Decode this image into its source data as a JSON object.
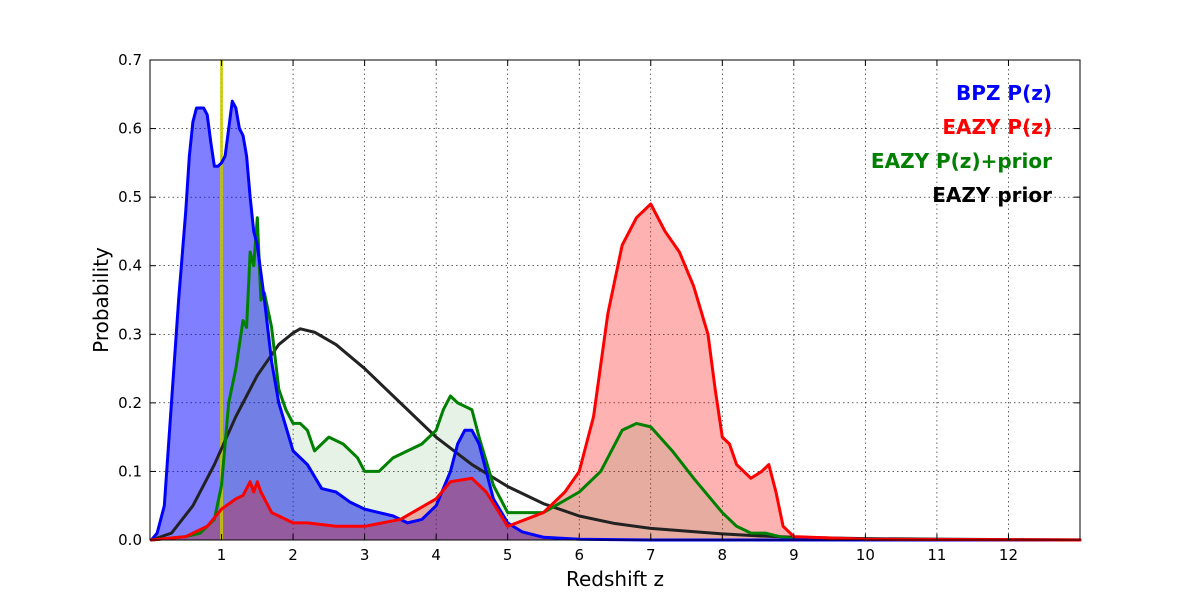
{
  "chart_data": {
    "type": "area",
    "xlabel": "Redshift z",
    "ylabel": "Probability",
    "xlim": [
      0,
      13
    ],
    "ylim": [
      0,
      0.7
    ],
    "xticks": [
      1,
      2,
      3,
      4,
      5,
      6,
      7,
      8,
      9,
      10,
      11,
      12
    ],
    "yticks": [
      0.0,
      0.1,
      0.2,
      0.3,
      0.4,
      0.5,
      0.6,
      0.7
    ],
    "grid": true,
    "legend_position": "top-right",
    "vertical_marker": {
      "x": 1.0,
      "color": "#c8c800"
    },
    "series": [
      {
        "name": "BPZ P(z)",
        "color": "#0000ff",
        "fill": true,
        "x": [
          0.02,
          0.1,
          0.2,
          0.3,
          0.4,
          0.5,
          0.55,
          0.6,
          0.65,
          0.7,
          0.75,
          0.8,
          0.85,
          0.9,
          0.95,
          1.0,
          1.05,
          1.1,
          1.15,
          1.2,
          1.25,
          1.3,
          1.35,
          1.4,
          1.45,
          1.5,
          1.6,
          1.7,
          1.8,
          1.9,
          2.0,
          2.2,
          2.4,
          2.6,
          2.8,
          3.0,
          3.2,
          3.4,
          3.6,
          3.8,
          4.0,
          4.2,
          4.3,
          4.4,
          4.5,
          4.6,
          4.7,
          4.8,
          5.0,
          5.2,
          5.5,
          6.0,
          7.0,
          9.0,
          11.0,
          13.0
        ],
        "y": [
          0.0,
          0.01,
          0.05,
          0.2,
          0.35,
          0.48,
          0.56,
          0.61,
          0.63,
          0.63,
          0.63,
          0.62,
          0.58,
          0.545,
          0.545,
          0.55,
          0.56,
          0.6,
          0.64,
          0.63,
          0.6,
          0.59,
          0.56,
          0.5,
          0.45,
          0.43,
          0.35,
          0.26,
          0.2,
          0.165,
          0.13,
          0.11,
          0.075,
          0.07,
          0.055,
          0.045,
          0.04,
          0.035,
          0.025,
          0.03,
          0.05,
          0.1,
          0.14,
          0.16,
          0.16,
          0.14,
          0.1,
          0.06,
          0.025,
          0.012,
          0.004,
          0.001,
          0.0,
          0.0,
          0.0,
          0.0
        ]
      },
      {
        "name": "EAZY P(z)",
        "color": "#ff0000",
        "fill": true,
        "x": [
          0.02,
          0.5,
          0.8,
          1.0,
          1.2,
          1.3,
          1.4,
          1.45,
          1.5,
          1.55,
          1.6,
          1.7,
          1.8,
          2.0,
          2.2,
          2.6,
          3.0,
          3.5,
          4.0,
          4.2,
          4.5,
          4.7,
          5.0,
          5.5,
          5.8,
          6.0,
          6.2,
          6.4,
          6.6,
          6.8,
          7.0,
          7.2,
          7.4,
          7.6,
          7.8,
          7.9,
          8.0,
          8.1,
          8.2,
          8.4,
          8.55,
          8.65,
          8.75,
          8.85,
          9.0,
          10.0,
          13.0
        ],
        "y": [
          0.0,
          0.005,
          0.02,
          0.045,
          0.06,
          0.065,
          0.085,
          0.07,
          0.085,
          0.07,
          0.06,
          0.04,
          0.035,
          0.025,
          0.025,
          0.02,
          0.02,
          0.03,
          0.06,
          0.085,
          0.09,
          0.07,
          0.02,
          0.04,
          0.07,
          0.1,
          0.18,
          0.33,
          0.43,
          0.47,
          0.49,
          0.45,
          0.42,
          0.37,
          0.3,
          0.22,
          0.15,
          0.14,
          0.11,
          0.09,
          0.1,
          0.11,
          0.07,
          0.02,
          0.005,
          0.001,
          0.0
        ]
      },
      {
        "name": "EAZY P(z)+prior",
        "color": "#008000",
        "fill": true,
        "x": [
          0.02,
          0.5,
          0.7,
          0.9,
          1.0,
          1.1,
          1.2,
          1.3,
          1.35,
          1.4,
          1.45,
          1.5,
          1.55,
          1.6,
          1.7,
          1.8,
          1.9,
          2.0,
          2.1,
          2.2,
          2.3,
          2.5,
          2.7,
          2.9,
          3.0,
          3.1,
          3.2,
          3.4,
          3.6,
          3.8,
          4.0,
          4.1,
          4.2,
          4.3,
          4.4,
          4.5,
          4.6,
          4.8,
          5.0,
          5.5,
          6.0,
          6.3,
          6.6,
          6.8,
          7.0,
          7.3,
          7.6,
          8.0,
          8.2,
          8.4,
          8.6,
          8.8,
          9.0,
          10.0,
          13.0
        ],
        "y": [
          0.0,
          0.005,
          0.01,
          0.03,
          0.08,
          0.2,
          0.25,
          0.32,
          0.31,
          0.42,
          0.4,
          0.47,
          0.35,
          0.36,
          0.31,
          0.22,
          0.19,
          0.17,
          0.17,
          0.16,
          0.13,
          0.15,
          0.14,
          0.12,
          0.1,
          0.1,
          0.1,
          0.12,
          0.13,
          0.14,
          0.16,
          0.19,
          0.21,
          0.2,
          0.195,
          0.19,
          0.15,
          0.08,
          0.04,
          0.04,
          0.07,
          0.1,
          0.16,
          0.17,
          0.165,
          0.13,
          0.09,
          0.04,
          0.02,
          0.01,
          0.01,
          0.005,
          0.002,
          0.0,
          0.0
        ]
      },
      {
        "name": "EAZY prior",
        "color": "#222222",
        "fill": false,
        "x": [
          0.02,
          0.3,
          0.6,
          0.9,
          1.2,
          1.5,
          1.8,
          2.0,
          2.1,
          2.3,
          2.6,
          3.0,
          3.5,
          4.0,
          4.5,
          5.0,
          5.5,
          6.0,
          6.5,
          7.0,
          7.5,
          8.0,
          8.5,
          9.0,
          10.0,
          11.0,
          12.0,
          13.0
        ],
        "y": [
          0.0,
          0.01,
          0.05,
          0.11,
          0.18,
          0.24,
          0.285,
          0.302,
          0.308,
          0.303,
          0.285,
          0.25,
          0.2,
          0.15,
          0.11,
          0.078,
          0.053,
          0.035,
          0.024,
          0.017,
          0.013,
          0.009,
          0.006,
          0.004,
          0.002,
          0.0012,
          0.0006,
          0.0002
        ]
      }
    ]
  }
}
